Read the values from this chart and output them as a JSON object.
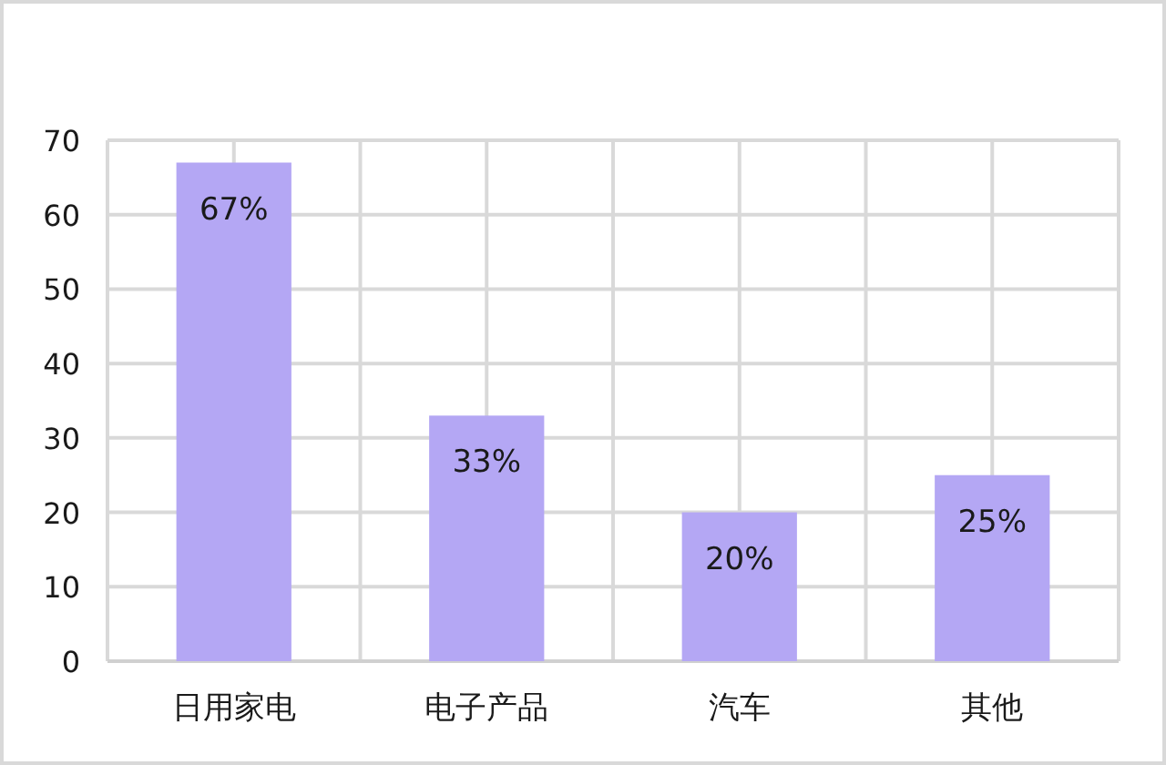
{
  "chart_data": {
    "type": "bar",
    "categories": [
      "日用家电",
      "电子产品",
      "汽车",
      "其他"
    ],
    "values": [
      67,
      33,
      20,
      25
    ],
    "color": "#b4a7f4",
    "value_labels": [
      "67%",
      "33%",
      "20%",
      "25%"
    ],
    "ylim": [
      0,
      70
    ],
    "yticks": [
      0,
      10,
      20,
      30,
      40,
      50,
      60,
      70
    ],
    "grid": true
  }
}
